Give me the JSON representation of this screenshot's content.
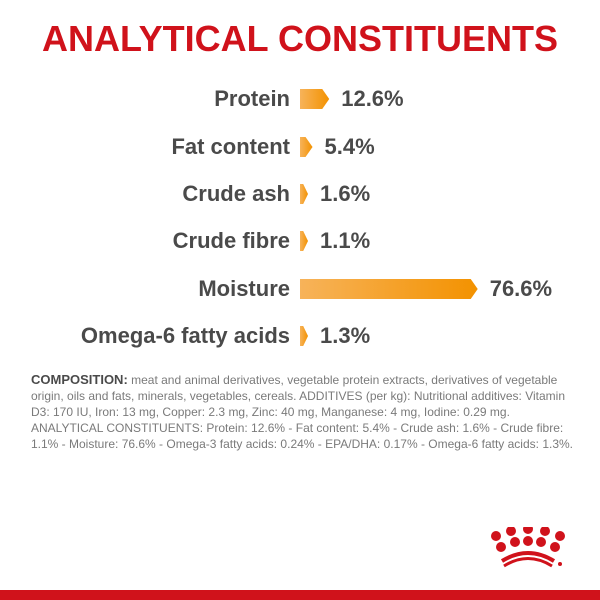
{
  "chart_data": {
    "type": "bar",
    "orientation": "horizontal",
    "title": "ANALYTICAL CONSTITUENTS",
    "categories": [
      "Protein",
      "Fat content",
      "Crude ash",
      "Crude fibre",
      "Moisture",
      "Omega-6 fatty acids"
    ],
    "values": [
      12.6,
      5.4,
      1.6,
      1.1,
      76.6,
      1.3
    ],
    "value_labels": [
      "12.6%",
      "5.4%",
      "1.6%",
      "1.1%",
      "76.6%",
      "1.3%"
    ],
    "unit": "%",
    "bar_color": "#f39200",
    "grid": false
  },
  "composition": {
    "heading": "COMPOSITION:",
    "text": " meat and animal derivatives, vegetable protein extracts, derivatives of vegetable origin, oils and fats, minerals, vegetables, cereals. ADDITIVES (per kg): Nutritional additives: Vitamin D3: 170 IU, Iron: 13 mg, Copper: 2.3 mg, Zinc: 40 mg, Manganese: 4 mg, Iodine: 0.29 mg. ANALYTICAL CONSTITUENTS: Protein: 12.6% - Fat content: 5.4% - Crude ash: 1.6% - Crude fibre: 1.1% - Moisture: 76.6% - Omega-3 fatty acids: 0.24% - EPA/DHA: 0.17% - Omega-6 fatty acids: 1.3%."
  },
  "brand": {
    "logo": "crown-logo",
    "color": "#d0121b"
  }
}
